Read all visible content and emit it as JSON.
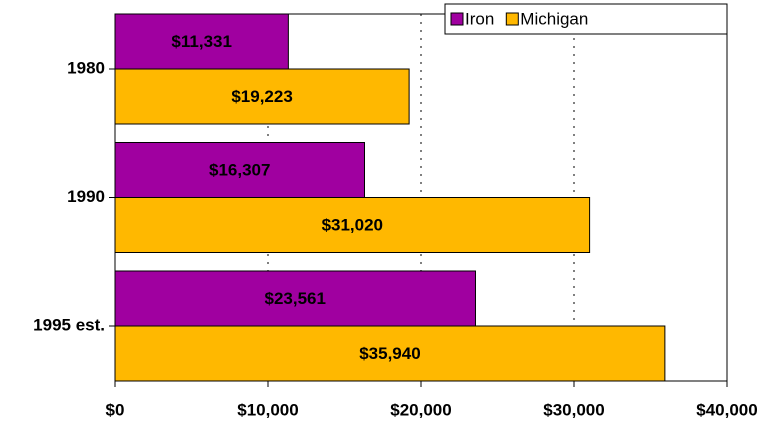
{
  "chart_data": {
    "type": "hbar",
    "categories": [
      "1980",
      "1990",
      "1995 est."
    ],
    "series": [
      {
        "name": "Iron",
        "color": "#a000a0",
        "values": [
          11331,
          16307,
          23561
        ],
        "value_labels": [
          "$11,331",
          "$16,307",
          "$23,561"
        ]
      },
      {
        "name": "Michigan",
        "color": "#ffb800",
        "values": [
          19223,
          31020,
          35940
        ],
        "value_labels": [
          "$19,223",
          "$31,020",
          "$35,940"
        ]
      }
    ],
    "xlim": [
      0,
      40000
    ],
    "xticks": [
      {
        "value": 0,
        "label": "$0"
      },
      {
        "value": 10000,
        "label": "$10,000"
      },
      {
        "value": 20000,
        "label": "$20,000"
      },
      {
        "value": 30000,
        "label": "$30,000"
      },
      {
        "value": 40000,
        "label": "$40,000"
      }
    ],
    "grid": true,
    "legend": "top-right"
  }
}
